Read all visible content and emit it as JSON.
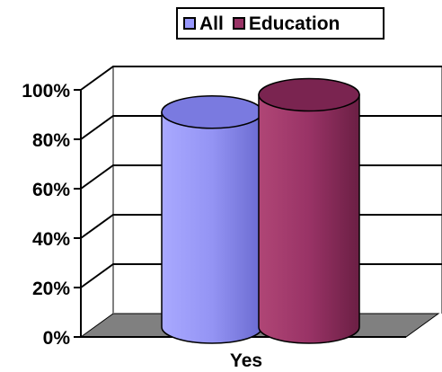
{
  "chart_data": {
    "type": "bar",
    "categories": [
      "Yes"
    ],
    "series": [
      {
        "name": "All",
        "values": [
          87
        ],
        "color": "#9999ff"
      },
      {
        "name": "Education",
        "values": [
          94
        ],
        "color": "#993366"
      }
    ],
    "title": "",
    "xlabel": "",
    "ylabel": "",
    "ylim": [
      0,
      100
    ],
    "y_ticks": [
      "0%",
      "20%",
      "40%",
      "60%",
      "80%",
      "100%"
    ],
    "grid": true,
    "legend_position": "top"
  }
}
